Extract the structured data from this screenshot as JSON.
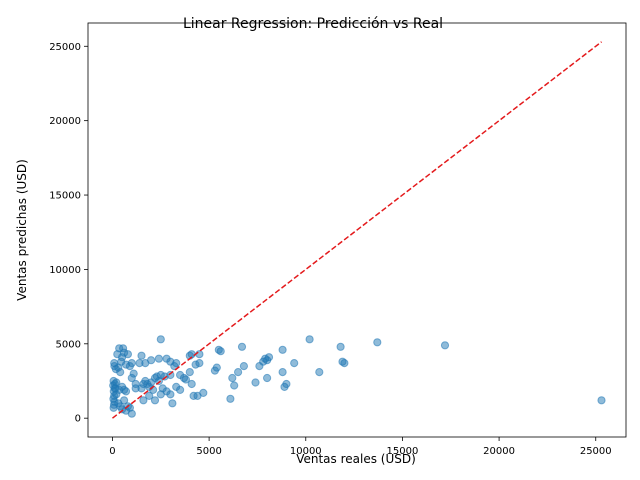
{
  "chart_data": {
    "type": "scatter",
    "title": "Linear Regression: Predicción vs Real",
    "xlabel": "Ventas reales (USD)",
    "ylabel": "Ventas predichas (USD)",
    "xlim": [
      -1265,
      26565
    ],
    "ylim": [
      -1265,
      26565
    ],
    "xticks": [
      0,
      5000,
      10000,
      15000,
      20000,
      25000
    ],
    "yticks": [
      0,
      5000,
      10000,
      15000,
      20000,
      25000
    ],
    "grid": false,
    "point_color": "#1f77b4",
    "reference_line": {
      "color": "#e41a1c",
      "from": [
        0,
        0
      ],
      "to": [
        25300,
        25300
      ]
    },
    "points": [
      [
        60,
        700
      ],
      [
        80,
        900
      ],
      [
        100,
        1100
      ],
      [
        50,
        1300
      ],
      [
        90,
        1500
      ],
      [
        70,
        1800
      ],
      [
        110,
        2000
      ],
      [
        40,
        2200
      ],
      [
        120,
        2300
      ],
      [
        60,
        2500
      ],
      [
        150,
        2000
      ],
      [
        200,
        2400
      ],
      [
        180,
        3300
      ],
      [
        100,
        3500
      ],
      [
        90,
        3700
      ],
      [
        250,
        4300
      ],
      [
        350,
        4700
      ],
      [
        300,
        3400
      ],
      [
        400,
        3100
      ],
      [
        450,
        3800
      ],
      [
        500,
        4100
      ],
      [
        550,
        4700
      ],
      [
        600,
        4400
      ],
      [
        700,
        3600
      ],
      [
        800,
        4300
      ],
      [
        900,
        3500
      ],
      [
        1000,
        3700
      ],
      [
        1100,
        3000
      ],
      [
        1000,
        2700
      ],
      [
        1200,
        2300
      ],
      [
        300,
        1000
      ],
      [
        400,
        800
      ],
      [
        500,
        600
      ],
      [
        600,
        1200
      ],
      [
        700,
        500
      ],
      [
        800,
        800
      ],
      [
        900,
        700
      ],
      [
        1000,
        300
      ],
      [
        200,
        1600
      ],
      [
        350,
        1900
      ],
      [
        500,
        2100
      ],
      [
        600,
        1900
      ],
      [
        700,
        1800
      ],
      [
        1500,
        2000
      ],
      [
        1600,
        2300
      ],
      [
        1700,
        2500
      ],
      [
        1800,
        2300
      ],
      [
        1900,
        2100
      ],
      [
        2000,
        2400
      ],
      [
        2100,
        1900
      ],
      [
        1600,
        1200
      ],
      [
        1900,
        1500
      ],
      [
        2200,
        1200
      ],
      [
        2500,
        1600
      ],
      [
        2800,
        1800
      ],
      [
        3000,
        1600
      ],
      [
        3100,
        1000
      ],
      [
        2600,
        2000
      ],
      [
        2400,
        2500
      ],
      [
        2300,
        2800
      ],
      [
        1400,
        3700
      ],
      [
        1500,
        4200
      ],
      [
        1700,
        3700
      ],
      [
        2000,
        3900
      ],
      [
        2400,
        4000
      ],
      [
        2500,
        5300
      ],
      [
        2800,
        4000
      ],
      [
        3000,
        3800
      ],
      [
        3200,
        3500
      ],
      [
        3300,
        3700
      ],
      [
        3000,
        2900
      ],
      [
        2700,
        2800
      ],
      [
        2500,
        2900
      ],
      [
        2200,
        2700
      ],
      [
        3500,
        2900
      ],
      [
        3700,
        2700
      ],
      [
        4000,
        3100
      ],
      [
        3800,
        2600
      ],
      [
        4100,
        2300
      ],
      [
        3300,
        2100
      ],
      [
        3500,
        1900
      ],
      [
        4200,
        1500
      ],
      [
        4400,
        1500
      ],
      [
        4700,
        1700
      ],
      [
        4300,
        3600
      ],
      [
        4500,
        3700
      ],
      [
        4000,
        4200
      ],
      [
        4100,
        4300
      ],
      [
        4500,
        4300
      ],
      [
        5300,
        3200
      ],
      [
        5400,
        3400
      ],
      [
        5500,
        4600
      ],
      [
        5600,
        4500
      ],
      [
        6100,
        1300
      ],
      [
        6300,
        2200
      ],
      [
        6200,
        2700
      ],
      [
        6500,
        3100
      ],
      [
        6800,
        3500
      ],
      [
        6700,
        4800
      ],
      [
        7400,
        2400
      ],
      [
        7600,
        3500
      ],
      [
        7800,
        3800
      ],
      [
        7900,
        4000
      ],
      [
        8000,
        3900
      ],
      [
        8100,
        4100
      ],
      [
        8000,
        2700
      ],
      [
        8800,
        3100
      ],
      [
        8900,
        2100
      ],
      [
        9000,
        2300
      ],
      [
        8800,
        4600
      ],
      [
        9400,
        3700
      ],
      [
        10200,
        5300
      ],
      [
        10700,
        3100
      ],
      [
        11800,
        4800
      ],
      [
        11900,
        3800
      ],
      [
        12000,
        3700
      ],
      [
        13700,
        5100
      ],
      [
        17200,
        4900
      ],
      [
        25300,
        1200
      ],
      [
        1200,
        2000
      ]
    ]
  }
}
